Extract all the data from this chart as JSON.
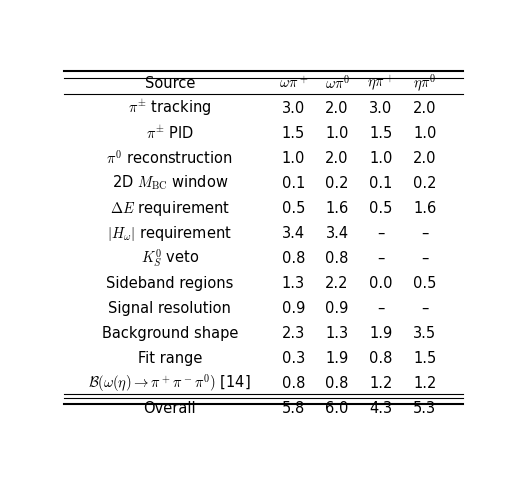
{
  "col_headers_math": [
    "Source",
    "$\\omega\\pi^+$",
    "$\\omega\\pi^0$",
    "$\\eta\\pi^+$",
    "$\\eta\\pi^0$"
  ],
  "rows": [
    [
      "$\\pi^{\\pm}$ tracking",
      "3.0",
      "2.0",
      "3.0",
      "2.0"
    ],
    [
      "$\\pi^{\\pm}$ PID",
      "1.5",
      "1.0",
      "1.5",
      "1.0"
    ],
    [
      "$\\pi^0$ reconstruction",
      "1.0",
      "2.0",
      "1.0",
      "2.0"
    ],
    [
      "2D $M_{\\mathrm{BC}}$ window",
      "0.1",
      "0.2",
      "0.1",
      "0.2"
    ],
    [
      "$\\Delta E$ requirement",
      "0.5",
      "1.6",
      "0.5",
      "1.6"
    ],
    [
      "$|H_{\\omega}|$ requirement",
      "3.4",
      "3.4",
      "–",
      "–"
    ],
    [
      "$K_S^0$ veto",
      "0.8",
      "0.8",
      "–",
      "–"
    ],
    [
      "Sideband regions",
      "1.3",
      "2.2",
      "0.0",
      "0.5"
    ],
    [
      "Signal resolution",
      "0.9",
      "0.9",
      "–",
      "–"
    ],
    [
      "Background shape",
      "2.3",
      "1.3",
      "1.9",
      "3.5"
    ],
    [
      "Fit range",
      "0.3",
      "1.9",
      "0.8",
      "1.5"
    ],
    [
      "$\\mathcal{B}(\\omega(\\eta)\\rightarrow\\pi^+\\pi^-\\pi^0)$ [14]",
      "0.8",
      "0.8",
      "1.2",
      "1.2"
    ],
    [
      "Overall",
      "5.8",
      "6.0",
      "4.3",
      "5.3"
    ]
  ],
  "background_color": "#ffffff",
  "text_color": "#000000",
  "font_size": 10.5
}
